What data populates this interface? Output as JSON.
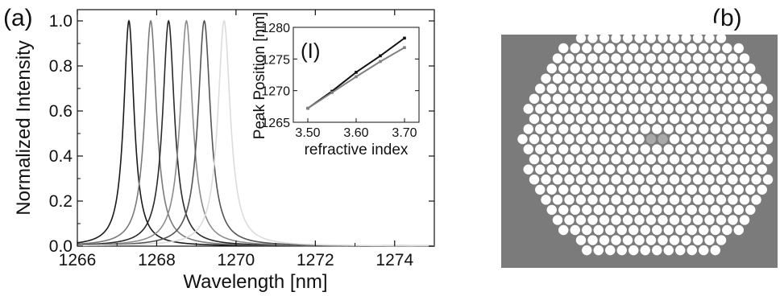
{
  "panels": {
    "a": "(a)",
    "b": "(b)"
  },
  "chart_data": [
    {
      "type": "line",
      "xlabel": "Wavelength [nm]",
      "ylabel": "Normalized Intensity",
      "xlim": [
        1266,
        1275
      ],
      "ylim": [
        0,
        1.05
      ],
      "x_ticks": [
        1266,
        1268,
        1270,
        1272,
        1274
      ],
      "y_ticks": [
        0.0,
        0.2,
        0.4,
        0.6,
        0.8,
        1.0
      ],
      "x_tick_labels": [
        "1266",
        "1268",
        "1270",
        "1272",
        "1274"
      ],
      "y_tick_labels": [
        "0.0",
        "0.2",
        "0.4",
        "0.6",
        "0.8",
        "1.0"
      ],
      "grid": false,
      "series": [
        {
          "peak": 1267.3,
          "fwhm": 0.32,
          "color": "#1a1a1a"
        },
        {
          "peak": 1267.85,
          "fwhm": 0.36,
          "color": "#7a7a7a"
        },
        {
          "peak": 1268.3,
          "fwhm": 0.36,
          "color": "#2a2a2a"
        },
        {
          "peak": 1268.75,
          "fwhm": 0.38,
          "color": "#8c8c8c"
        },
        {
          "peak": 1269.2,
          "fwhm": 0.38,
          "color": "#555555"
        },
        {
          "peak": 1269.7,
          "fwhm": 0.38,
          "color": "#dcdcdc"
        }
      ]
    },
    {
      "type": "line",
      "label": "(I)",
      "xlabel": "refractive index",
      "ylabel": "Peak Position [nm]",
      "xlim": [
        3.47,
        3.73
      ],
      "ylim": [
        1265,
        1280
      ],
      "x_ticks": [
        3.5,
        3.6,
        3.7
      ],
      "y_ticks": [
        1265,
        1270,
        1275,
        1280
      ],
      "x_tick_labels": [
        "3.50",
        "3.60",
        "3.70"
      ],
      "y_tick_labels": [
        "1265",
        "1270",
        "1275",
        "1280"
      ],
      "series": [
        {
          "x": [
            3.5,
            3.55,
            3.6,
            3.65,
            3.7
          ],
          "y": [
            1267.2,
            1269.9,
            1272.9,
            1275.5,
            1278.3
          ],
          "color": "#111111"
        },
        {
          "x": [
            3.5,
            3.55,
            3.6,
            3.65,
            3.7
          ],
          "y": [
            1267.2,
            1269.7,
            1272.2,
            1274.6,
            1276.8
          ],
          "color": "#808080"
        }
      ]
    }
  ],
  "lattice": {
    "background": "#7b7b7b",
    "hole_color": "#ffffff",
    "defect_color": "#a9a9a9",
    "rows": 23,
    "cols": 20,
    "defects": [
      [
        0,
        0
      ],
      [
        1,
        0
      ]
    ]
  }
}
